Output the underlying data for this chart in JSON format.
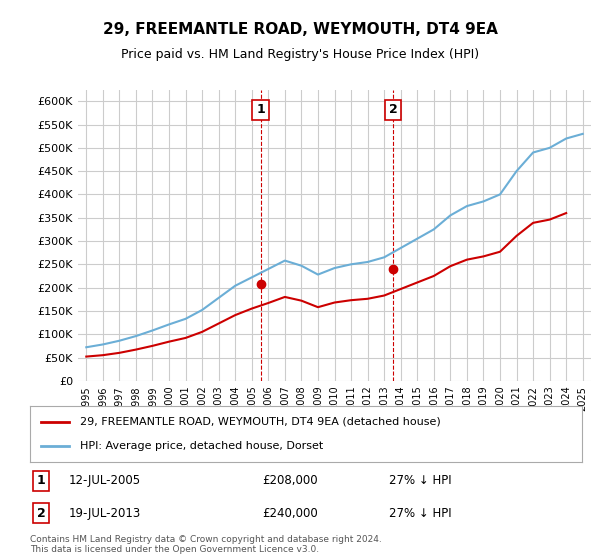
{
  "title": "29, FREEMANTLE ROAD, WEYMOUTH, DT4 9EA",
  "subtitle": "Price paid vs. HM Land Registry's House Price Index (HPI)",
  "hpi_label": "HPI: Average price, detached house, Dorset",
  "property_label": "29, FREEMANTLE ROAD, WEYMOUTH, DT4 9EA (detached house)",
  "footnote": "Contains HM Land Registry data © Crown copyright and database right 2024.\nThis data is licensed under the Open Government Licence v3.0.",
  "sale1": {
    "label": "1",
    "date": "12-JUL-2005",
    "price": "£208,000",
    "hpi": "27% ↓ HPI"
  },
  "sale2": {
    "label": "2",
    "date": "19-JUL-2013",
    "price": "£240,000",
    "hpi": "27% ↓ HPI"
  },
  "hpi_color": "#6baed6",
  "property_color": "#cc0000",
  "marker1_color": "#cc0000",
  "marker2_color": "#cc0000",
  "vline_color": "#cc0000",
  "background_color": "#ffffff",
  "grid_color": "#cccccc",
  "ylim": [
    0,
    625000
  ],
  "yticks": [
    0,
    50000,
    100000,
    150000,
    200000,
    250000,
    300000,
    350000,
    400000,
    450000,
    500000,
    550000,
    600000
  ],
  "hpi_years": [
    1995,
    1996,
    1997,
    1998,
    1999,
    2000,
    2001,
    2002,
    2003,
    2004,
    2005,
    2006,
    2007,
    2008,
    2009,
    2010,
    2011,
    2012,
    2013,
    2014,
    2015,
    2016,
    2017,
    2018,
    2019,
    2020,
    2021,
    2022,
    2023,
    2024,
    2025
  ],
  "hpi_values": [
    72000,
    78000,
    86000,
    96000,
    108000,
    121000,
    133000,
    152000,
    178000,
    204000,
    222000,
    240000,
    258000,
    247000,
    228000,
    242000,
    250000,
    255000,
    265000,
    285000,
    305000,
    325000,
    355000,
    375000,
    385000,
    400000,
    450000,
    490000,
    500000,
    520000,
    530000
  ],
  "sale1_x": 2005.53,
  "sale1_y": 208000,
  "sale2_x": 2013.53,
  "sale2_y": 240000,
  "property_years": [
    1995,
    1996,
    1997,
    1998,
    1999,
    2000,
    2001,
    2002,
    2003,
    2004,
    2005,
    2006,
    2007,
    2008,
    2009,
    2010,
    2011,
    2012,
    2013,
    2014,
    2015,
    2016,
    2017,
    2018,
    2019,
    2020,
    2021,
    2022,
    2023,
    2024
  ],
  "property_values": [
    52000,
    55000,
    60000,
    67000,
    75000,
    84000,
    92000,
    105000,
    123000,
    141000,
    155000,
    167000,
    180000,
    172000,
    158000,
    168000,
    173000,
    176000,
    183000,
    197000,
    211000,
    225000,
    246000,
    260000,
    267000,
    277000,
    311000,
    339000,
    346000,
    360000
  ],
  "xlim_start": 1994.5,
  "xlim_end": 2025.5
}
